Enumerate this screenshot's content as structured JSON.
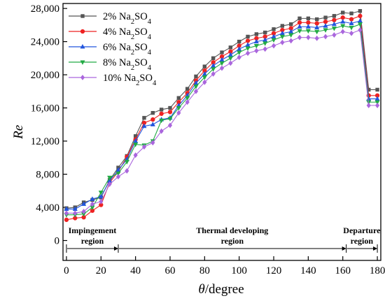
{
  "chart_data": {
    "type": "line",
    "xlabel_var": "θ",
    "xlabel_unit": "/degree",
    "ylabel": "Re",
    "xlim": [
      -2,
      182
    ],
    "ylim": [
      -2400,
      28600
    ],
    "xticks": [
      0,
      20,
      40,
      60,
      80,
      100,
      120,
      140,
      160,
      180
    ],
    "yticks": [
      0,
      4000,
      8000,
      12000,
      16000,
      20000,
      24000,
      28000
    ],
    "ytick_labels": [
      "0",
      "4,000",
      "8,000",
      "12,000",
      "16,000",
      "20,000",
      "24,000",
      "28,000"
    ],
    "grid": false,
    "legend_position": "top-left",
    "x": [
      0,
      5,
      10,
      15,
      20,
      25,
      30,
      35,
      40,
      45,
      50,
      55,
      60,
      65,
      70,
      75,
      80,
      85,
      90,
      95,
      100,
      105,
      110,
      115,
      120,
      125,
      130,
      135,
      140,
      145,
      150,
      155,
      160,
      165,
      170,
      175,
      180
    ],
    "series": [
      {
        "name": "2%",
        "subst": "Na",
        "sub1": "2",
        "subst2": "SO",
        "sub2": "4",
        "color": "#555555",
        "marker": "square",
        "values": [
          3900,
          4000,
          4600,
          4900,
          5200,
          7300,
          8800,
          10200,
          12600,
          14800,
          15400,
          15800,
          16000,
          17200,
          18300,
          19800,
          21000,
          22000,
          22700,
          23300,
          24000,
          24600,
          24900,
          25100,
          25500,
          25900,
          26100,
          26800,
          26800,
          26700,
          26900,
          27100,
          27500,
          27400,
          27700,
          18200,
          18200
        ]
      },
      {
        "name": "4%",
        "subst": "Na",
        "sub1": "2",
        "subst2": "SO",
        "sub2": "4",
        "color": "#ee2222",
        "marker": "circle",
        "values": [
          2500,
          2700,
          2800,
          3600,
          4300,
          7000,
          8300,
          10100,
          12200,
          14200,
          14600,
          15300,
          15500,
          16700,
          17800,
          19300,
          20500,
          21500,
          22200,
          22800,
          23500,
          24100,
          24400,
          24600,
          25000,
          25400,
          25600,
          26300,
          26300,
          26200,
          26400,
          26600,
          26900,
          26700,
          27100,
          17500,
          17500
        ]
      },
      {
        "name": "6%",
        "subst": "Na",
        "sub1": "2",
        "subst2": "SO",
        "sub2": "4",
        "color": "#2255dd",
        "marker": "triangle-up",
        "values": [
          3800,
          3800,
          4400,
          5000,
          5300,
          7200,
          8500,
          9800,
          12000,
          13800,
          14000,
          14600,
          14800,
          16300,
          17500,
          19000,
          20100,
          21100,
          21800,
          22400,
          23100,
          23600,
          24000,
          24200,
          24600,
          25000,
          25200,
          25800,
          25800,
          25700,
          25900,
          26100,
          26400,
          26200,
          26500,
          17100,
          17100
        ]
      },
      {
        "name": "8%",
        "subst": "Na",
        "sub1": "2",
        "subst2": "SO",
        "sub2": "4",
        "color": "#22aa44",
        "marker": "triangle-down",
        "values": [
          3100,
          3100,
          3200,
          4000,
          5800,
          7600,
          8100,
          9500,
          11600,
          11500,
          12000,
          14500,
          14700,
          16000,
          17200,
          18600,
          19700,
          20700,
          21400,
          22000,
          22700,
          23200,
          23500,
          23800,
          24200,
          24600,
          24800,
          25300,
          25300,
          25200,
          25400,
          25600,
          25900,
          25700,
          26100,
          16700,
          16700
        ]
      },
      {
        "name": "10%",
        "subst": "Na",
        "sub1": "2",
        "subst2": "SO",
        "sub2": "4",
        "color": "#aa66dd",
        "marker": "diamond",
        "values": [
          3300,
          3300,
          3500,
          4400,
          4700,
          6800,
          7700,
          8400,
          10300,
          11300,
          11800,
          13200,
          13900,
          15400,
          16700,
          18000,
          19100,
          20100,
          20800,
          21400,
          22100,
          22600,
          22900,
          23100,
          23500,
          23900,
          24100,
          24500,
          24500,
          24400,
          24600,
          24800,
          25200,
          25000,
          25400,
          16300,
          16300
        ]
      }
    ],
    "regions": [
      {
        "label_line1": "Impingement",
        "label_line2": "region",
        "start": 0,
        "end": 30
      },
      {
        "label_line1": "Thermal developing",
        "label_line2": "region",
        "start": 30,
        "end": 162
      },
      {
        "label_line1": "Departure",
        "label_line2": "region",
        "start": 162,
        "end": 180
      }
    ]
  }
}
